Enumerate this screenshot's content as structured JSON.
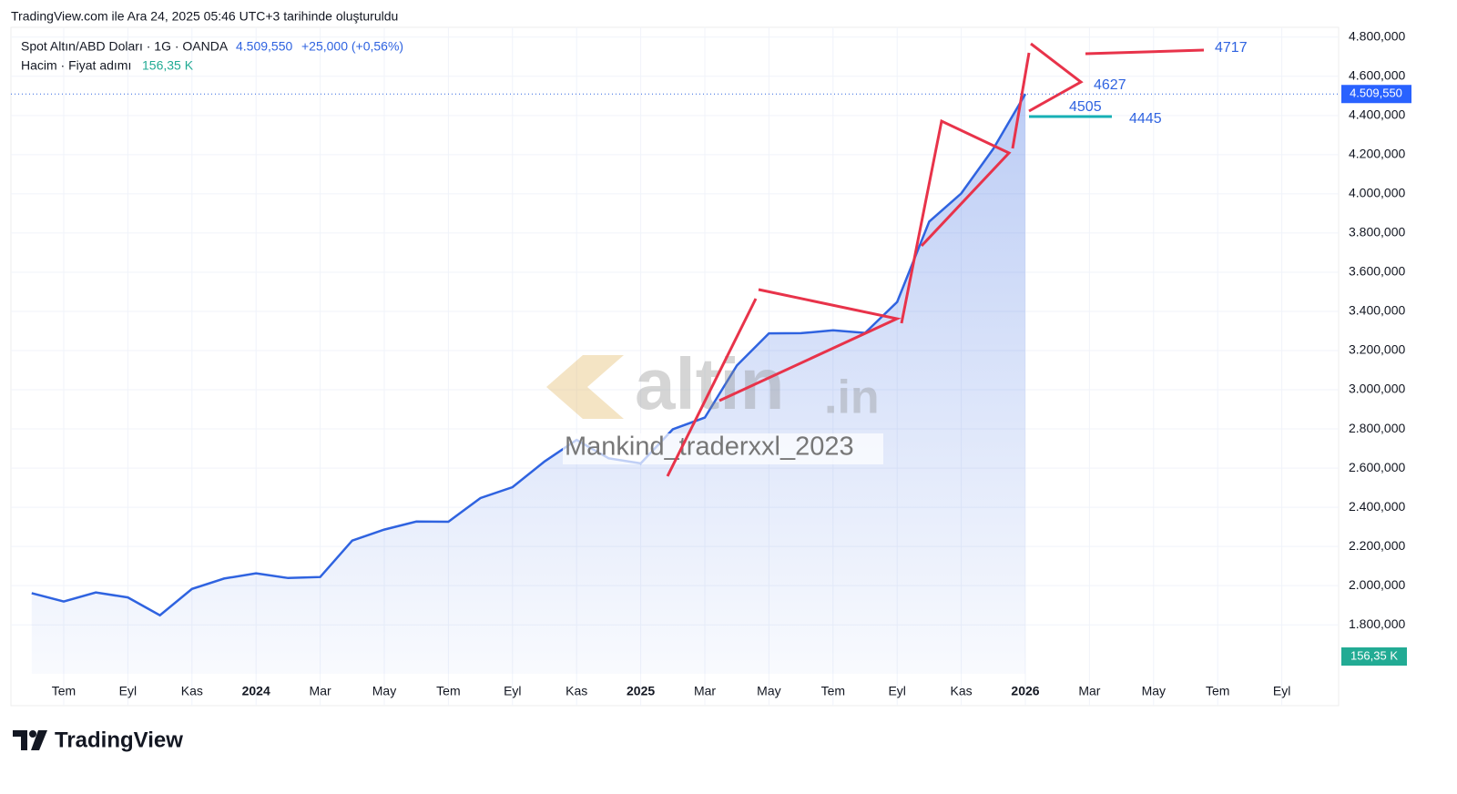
{
  "chart_data": {
    "type": "line",
    "title": "TradingView.com ile Ara 24, 2025 05:46 UTC+3 tarihinde oluşturuldu",
    "legend": {
      "symbol": "Spot Altın/ABD Doları · 1G · OANDA",
      "price": "4.509,550",
      "change": "+25,000 (+0,56%)",
      "volume_name": "Hacim · Fiyat adımı",
      "volume_value": "156,35 K"
    },
    "last_price": {
      "value": 4509.55,
      "label": "4.509,550"
    },
    "volume_tag": "156,35 K",
    "x": [
      "2023-05",
      "2023-06",
      "2023-07",
      "2023-08",
      "2023-09",
      "2023-10",
      "2023-11",
      "2023-12",
      "2024-01",
      "2024-02",
      "2024-03",
      "2024-04",
      "2024-05",
      "2024-06",
      "2024-07",
      "2024-08",
      "2024-09",
      "2024-10",
      "2024-11",
      "2024-12",
      "2025-01",
      "2025-02",
      "2025-03",
      "2025-04",
      "2025-05",
      "2025-06",
      "2025-07",
      "2025-08",
      "2025-09",
      "2025-10",
      "2025-11",
      "2025-12"
    ],
    "series": [
      {
        "name": "Spot Altın/ABD Doları",
        "color": "#2f63e0",
        "values": [
          1962,
          1919,
          1965,
          1940,
          1849,
          1983,
          2036,
          2063,
          2039,
          2044,
          2230,
          2286,
          2327,
          2326,
          2447,
          2503,
          2634,
          2744,
          2650,
          2624,
          2798,
          2858,
          3124,
          3288,
          3289,
          3303,
          3290,
          3448,
          3858,
          4002,
          4230,
          4509.55
        ]
      }
    ],
    "ylim": [
      1550,
      4850
    ],
    "yticks": [
      {
        "value": 1800,
        "label": "1.800,000"
      },
      {
        "value": 2000,
        "label": "2.000,000"
      },
      {
        "value": 2200,
        "label": "2.200,000"
      },
      {
        "value": 2400,
        "label": "2.400,000"
      },
      {
        "value": 2600,
        "label": "2.600,000"
      },
      {
        "value": 2800,
        "label": "2.800,000"
      },
      {
        "value": 3000,
        "label": "3.000,000"
      },
      {
        "value": 3200,
        "label": "3.200,000"
      },
      {
        "value": 3400,
        "label": "3.400,000"
      },
      {
        "value": 3600,
        "label": "3.600,000"
      },
      {
        "value": 3800,
        "label": "3.800,000"
      },
      {
        "value": 4000,
        "label": "4.000,000"
      },
      {
        "value": 4200,
        "label": "4.200,000"
      },
      {
        "value": 4400,
        "label": "4.400,000"
      },
      {
        "value": 4600,
        "label": "4.600,000"
      },
      {
        "value": 4800,
        "label": "4.800,000"
      }
    ],
    "xticks": [
      {
        "value": "2023-07",
        "label": "Tem"
      },
      {
        "value": "2023-09",
        "label": "Eyl"
      },
      {
        "value": "2023-11",
        "label": "Kas"
      },
      {
        "value": "2024-01",
        "label": "2024"
      },
      {
        "value": "2024-03",
        "label": "Mar"
      },
      {
        "value": "2024-05",
        "label": "May"
      },
      {
        "value": "2024-07",
        "label": "Tem"
      },
      {
        "value": "2024-09",
        "label": "Eyl"
      },
      {
        "value": "2024-11",
        "label": "Kas"
      },
      {
        "value": "2025-01",
        "label": "2025"
      },
      {
        "value": "2025-03",
        "label": "Mar"
      },
      {
        "value": "2025-05",
        "label": "May"
      },
      {
        "value": "2025-07",
        "label": "Tem"
      },
      {
        "value": "2025-09",
        "label": "Eyl"
      },
      {
        "value": "2025-11",
        "label": "Kas"
      },
      {
        "value": "2026-01",
        "label": "2026"
      },
      {
        "value": "2026-03",
        "label": "Mar"
      },
      {
        "value": "2026-05",
        "label": "May"
      },
      {
        "value": "2026-07",
        "label": "Tem"
      },
      {
        "value": "2026-09",
        "label": "Eyl"
      }
    ],
    "grid": true,
    "annotations": [
      "4717",
      "4627",
      "4505",
      "4445"
    ],
    "watermark": {
      "logo": "altin",
      "domain": ".in",
      "author": "Mankind_traderxxl_2023"
    },
    "brand": "TradingView"
  }
}
